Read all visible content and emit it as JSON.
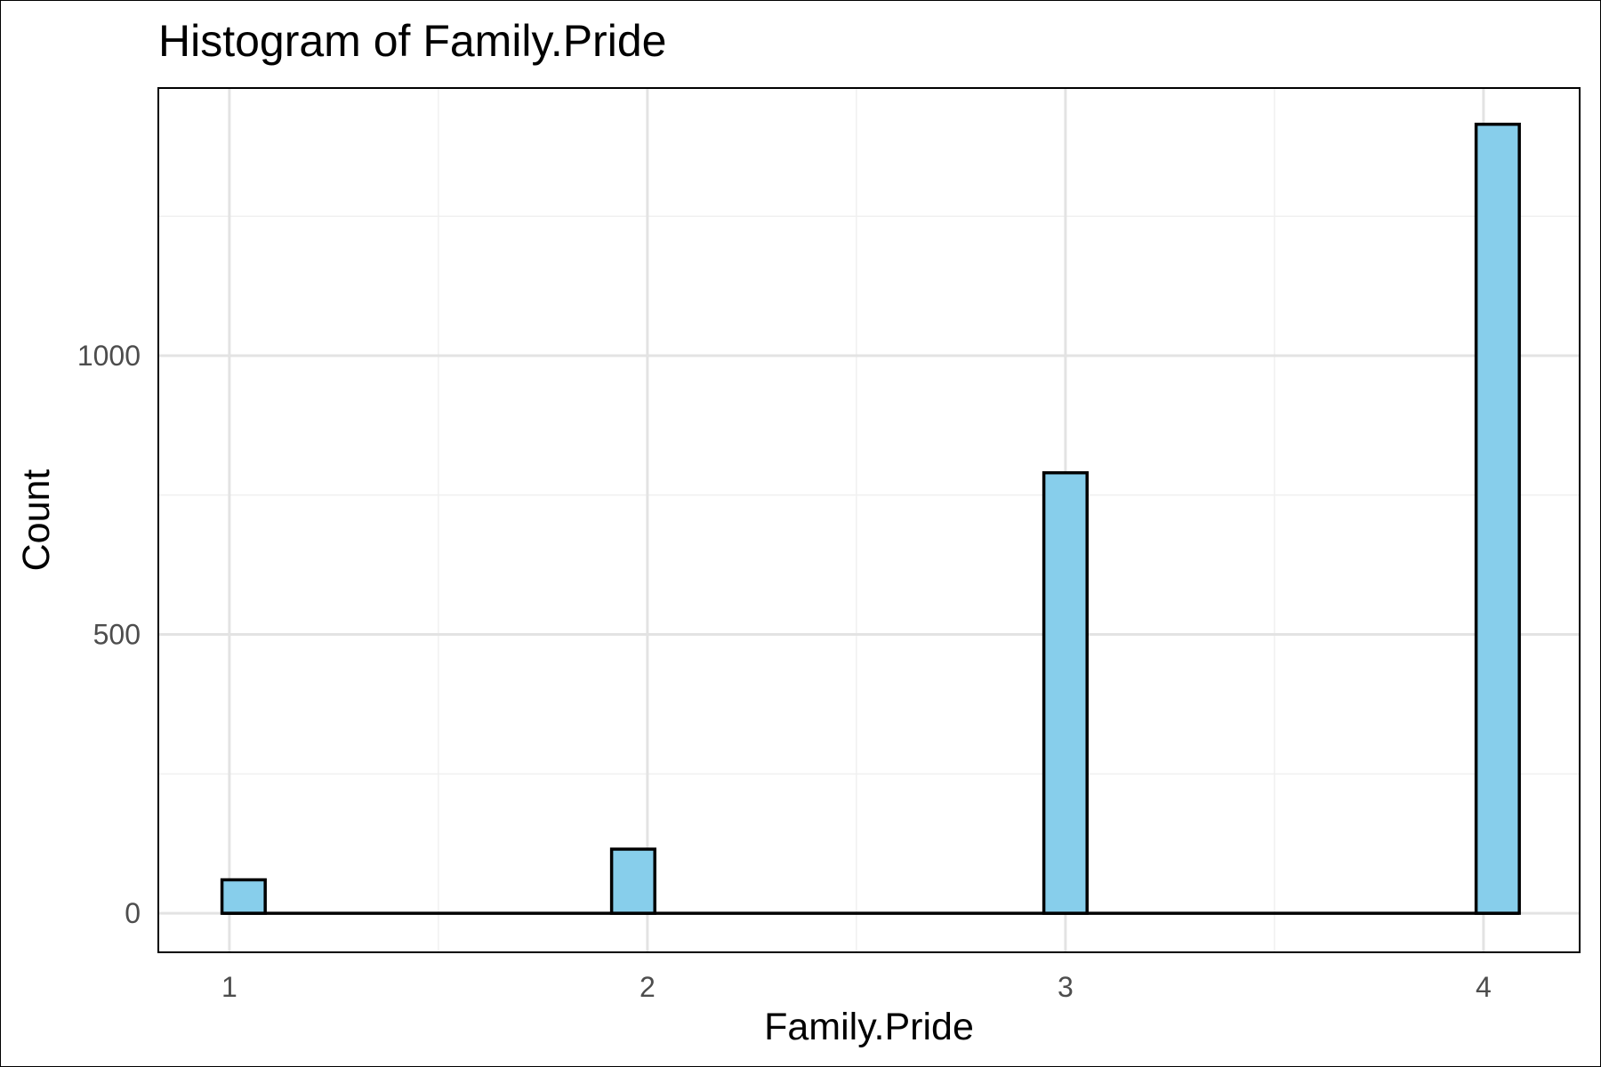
{
  "chart_data": {
    "type": "bar",
    "title": "Histogram of Family.Pride",
    "xlabel": "Family.Pride",
    "ylabel": "Count",
    "x_ticks": [
      "1",
      "2",
      "3",
      "4"
    ],
    "y_ticks": [
      "0",
      "500",
      "1000"
    ],
    "xlim": [
      0.83,
      4.23
    ],
    "ylim": [
      -70,
      1480
    ],
    "bin_width": 0.1034,
    "bins": [
      {
        "x": 1.034,
        "count": 60
      },
      {
        "x": 1.966,
        "count": 115
      },
      {
        "x": 3.0,
        "count": 790
      },
      {
        "x": 4.034,
        "count": 1415
      }
    ],
    "bar_fill": "#87ceeb",
    "bar_stroke": "#000000",
    "grid": true,
    "panel_border": true
  }
}
